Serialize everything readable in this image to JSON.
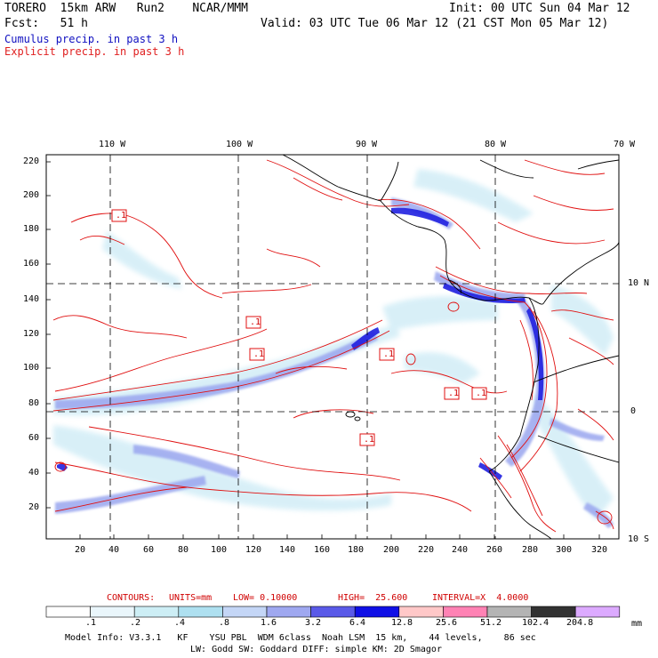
{
  "header": {
    "model": "TORERO  15km ARW   Run2    NCAR/MMM",
    "init": "Init: 00 UTC Sun 04 Mar 12",
    "fcst": "Fcst:   51 h",
    "valid": "Valid: 03 UTC Tue 06 Mar 12 (21 CST Mon 05 Mar 12)"
  },
  "legend": {
    "cumulus": "Cumulus precip. in past 3 h",
    "explicit": "Explicit precip. in past 3 h"
  },
  "axes": {
    "top_ticks": [
      "110 W",
      "100 W",
      "90 W",
      "80 W",
      "70 W"
    ],
    "left_ticks": [
      "220",
      "200",
      "180",
      "160",
      "140",
      "120",
      "100",
      "80",
      "60",
      "40",
      "20"
    ],
    "bottom_ticks": [
      "20",
      "40",
      "60",
      "80",
      "100",
      "120",
      "140",
      "160",
      "180",
      "200",
      "220",
      "240",
      "260",
      "280",
      "300",
      "320"
    ],
    "right_ticks": [
      "10 N",
      "0",
      "10 S"
    ]
  },
  "contour_labels": [
    ".1",
    ".1",
    ".1",
    ".1",
    ".1",
    ".1",
    ".1"
  ],
  "contour_info": {
    "label": "CONTOURS:",
    "units": "UNITS=mm",
    "low": "LOW= 0.10000",
    "high": "HIGH=  25.600",
    "interval": "INTERVAL=X  4.0000"
  },
  "colorbar": {
    "values": [
      ".1",
      ".2",
      ".4",
      ".8",
      "1.6",
      "3.2",
      "6.4",
      "12.8",
      "25.6",
      "51.2",
      "102.4",
      "204.8"
    ],
    "unit": "mm",
    "colors": [
      "#ffffff",
      "#eaf6fb",
      "#cdeef5",
      "#aee0f0",
      "#c4d6f6",
      "#9fa8f0",
      "#5a5ae8",
      "#1010e6",
      "#ffc8c8",
      "#ff82b4",
      "#b4b4b4",
      "#323232",
      "#dcaaff"
    ]
  },
  "model_info": {
    "line1": "Model Info: V3.3.1   KF    YSU PBL  WDM 6class  Noah LSM  15 km,    44 levels,    86 sec",
    "line2": "LW: Godd SW: Goddard DIFF: simple KM: 2D Smagor"
  }
}
